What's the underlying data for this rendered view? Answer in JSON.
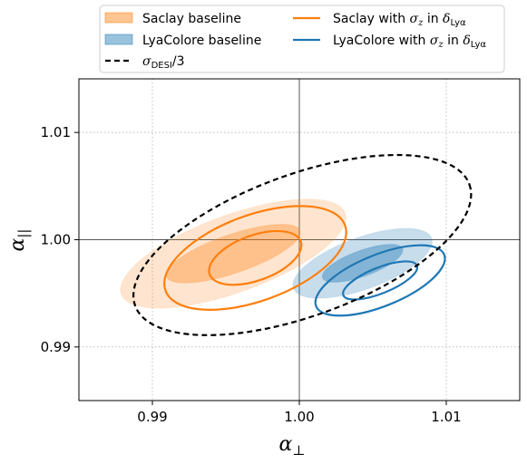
{
  "chart_data": {
    "type": "contour",
    "xlabel": "α⊥",
    "ylabel": "α||",
    "xlim": [
      0.985,
      1.015
    ],
    "ylim": [
      0.985,
      1.015
    ],
    "xticks": [
      "0.99",
      "1.00",
      "1.01"
    ],
    "yticks": [
      "0.99",
      "1.00",
      "1.01"
    ],
    "xtick_values": [
      0.99,
      1.0,
      1.01
    ],
    "ytick_values": [
      0.99,
      1.0,
      1.01
    ],
    "grid": true,
    "reference_lines": {
      "x": 1.0,
      "y": 1.0
    },
    "legend": {
      "placement": "top, outside plot, two columns",
      "items": [
        {
          "label": "Saclay baseline",
          "kind": "patch",
          "color": "#ff7f0e"
        },
        {
          "label": "LyaColore baseline",
          "kind": "patch",
          "color": "#1f77b4"
        },
        {
          "label": "σDESI/3",
          "kind": "dashed-line",
          "color": "#000000"
        },
        {
          "label": "Saclay with σz in δLyα",
          "kind": "line",
          "color": "#ff7f0e"
        },
        {
          "label": "LyaColore with σz in δLyα",
          "kind": "line",
          "color": "#1f77b4"
        }
      ]
    },
    "series": [
      {
        "name": "Saclay baseline",
        "style": "filled",
        "color": "#ff7f0e",
        "center": [
          0.9955,
          0.9987
        ],
        "contours": [
          {
            "level": "1σ",
            "semi_axes": [
              0.0048,
              0.0018
            ],
            "angle_deg": -19,
            "opacity": 0.35
          },
          {
            "level": "2σ",
            "semi_axes": [
              0.0081,
              0.0036
            ],
            "angle_deg": -20,
            "opacity": 0.2
          }
        ]
      },
      {
        "name": "LyaColore baseline",
        "style": "filled",
        "color": "#1f77b4",
        "center": [
          1.0043,
          0.9978
        ],
        "contours": [
          {
            "level": "1σ",
            "semi_axes": [
              0.0029,
              0.0012
            ],
            "angle_deg": -20,
            "opacity": 0.4
          },
          {
            "level": "2σ",
            "semi_axes": [
              0.005,
              0.0024
            ],
            "angle_deg": -20,
            "opacity": 0.25
          }
        ]
      },
      {
        "name": "σDESI/3",
        "style": "dashed",
        "color": "#000000",
        "center": [
          1.0002,
          0.9995
        ],
        "contours": [
          {
            "level": "1σ",
            "semi_axes": [
              0.0121,
              0.0066
            ],
            "angle_deg": -20
          }
        ]
      },
      {
        "name": "Saclay with σz in δLyα",
        "style": "line",
        "color": "#ff7f0e",
        "center": [
          0.997,
          0.9983
        ],
        "contours": [
          {
            "level": "1σ",
            "semi_axes": [
              0.0033,
              0.0021
            ],
            "angle_deg": -20
          },
          {
            "level": "2σ",
            "semi_axes": [
              0.0065,
              0.004
            ],
            "angle_deg": -20
          }
        ]
      },
      {
        "name": "LyaColore with σz in δLyα",
        "style": "line",
        "color": "#1f77b4",
        "center": [
          1.0055,
          0.9962
        ],
        "contours": [
          {
            "level": "1σ",
            "semi_axes": [
              0.0027,
              0.0012
            ],
            "angle_deg": -22
          },
          {
            "level": "2σ",
            "semi_axes": [
              0.0047,
              0.0024
            ],
            "angle_deg": -22
          }
        ]
      }
    ]
  }
}
